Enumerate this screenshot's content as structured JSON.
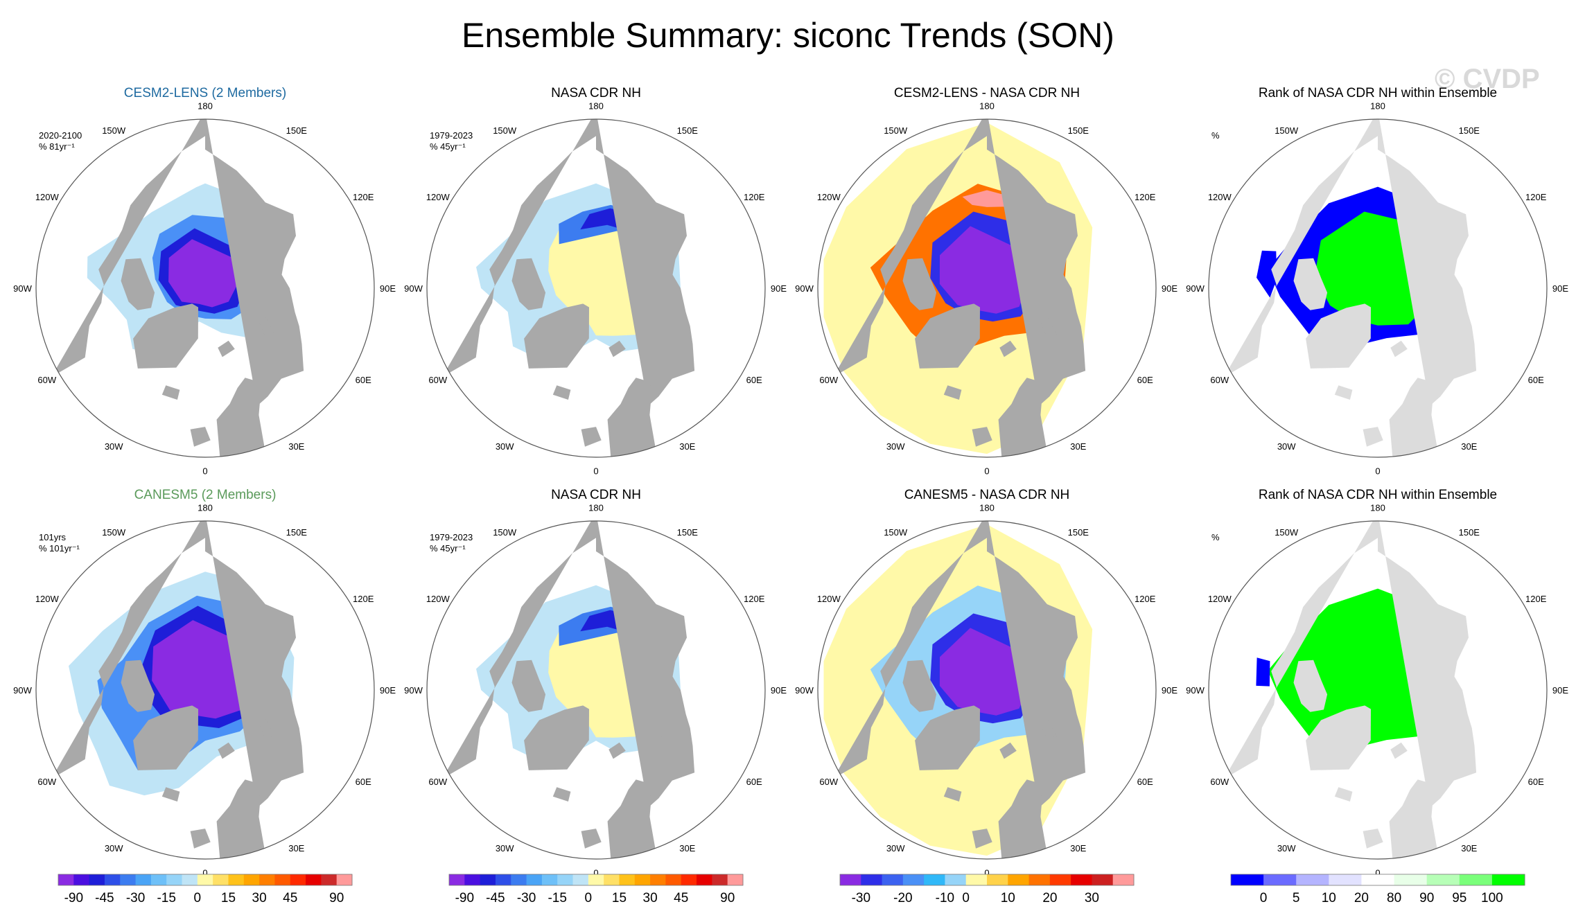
{
  "title": "Ensemble Summary: siconc Trends (SON)",
  "watermark": "© CVDP",
  "colors": {
    "land": "#a9a9a9",
    "rank_land": "#dcdcdc",
    "title_cesm": "#1e6aa0",
    "title_canesm": "#5a9a5a"
  },
  "longitude_labels": [
    "180",
    "150E",
    "120E",
    "90E",
    "60E",
    "30E",
    "0",
    "30W",
    "60W",
    "90W",
    "120W",
    "150W"
  ],
  "panels": [
    {
      "row": 0,
      "col": 0,
      "title": "CESM2-LENS (2 Members)",
      "title_color": "#1e6aa0",
      "note_lines": [
        "2020-2100",
        "% 81yr⁻¹"
      ],
      "type": "trend",
      "pattern": "cesm",
      "land_color": "#a9a9a9"
    },
    {
      "row": 0,
      "col": 1,
      "title": "NASA CDR NH",
      "title_color": "#000000",
      "note_lines": [
        "1979-2023",
        "% 45yr⁻¹"
      ],
      "type": "trend",
      "pattern": "obs",
      "land_color": "#a9a9a9"
    },
    {
      "row": 0,
      "col": 2,
      "title": "CESM2-LENS - NASA CDR NH",
      "title_color": "#000000",
      "note_lines": [],
      "type": "diff",
      "pattern": "diff-cesm",
      "land_color": "#a9a9a9"
    },
    {
      "row": 0,
      "col": 3,
      "title": "Rank of NASA CDR NH within Ensemble",
      "title_color": "#000000",
      "note_lines": [
        "%"
      ],
      "type": "rank",
      "pattern": "rank-cesm",
      "land_color": "#dcdcdc"
    },
    {
      "row": 1,
      "col": 0,
      "title": "CANESM5 (2 Members)",
      "title_color": "#5a9a5a",
      "note_lines": [
        "101yrs",
        "% 101yr⁻¹"
      ],
      "type": "trend",
      "pattern": "canesm",
      "land_color": "#a9a9a9"
    },
    {
      "row": 1,
      "col": 1,
      "title": "NASA CDR NH",
      "title_color": "#000000",
      "note_lines": [
        "1979-2023",
        "% 45yr⁻¹"
      ],
      "type": "trend",
      "pattern": "obs",
      "land_color": "#a9a9a9"
    },
    {
      "row": 1,
      "col": 2,
      "title": "CANESM5 - NASA CDR NH",
      "title_color": "#000000",
      "note_lines": [],
      "type": "diff",
      "pattern": "diff-canesm",
      "land_color": "#a9a9a9"
    },
    {
      "row": 1,
      "col": 3,
      "title": "Rank of NASA CDR NH within Ensemble",
      "title_color": "#000000",
      "note_lines": [
        "%"
      ],
      "type": "rank",
      "pattern": "rank-canesm",
      "land_color": "#dcdcdc"
    }
  ],
  "colorbars": [
    {
      "name": "trend-colorbar-1",
      "colors": [
        "#8a2be2",
        "#4b0fe0",
        "#1e1ed8",
        "#2e4fe8",
        "#3c7cf0",
        "#4aa4f6",
        "#6ec0f8",
        "#96d4f8",
        "#bfe4f6",
        "#fff9a8",
        "#ffe066",
        "#ffc21a",
        "#ffa500",
        "#ff7f00",
        "#ff5a00",
        "#ff2a00",
        "#e60000",
        "#cc2a2a",
        "#ff9a9a"
      ],
      "labels": [
        "-90",
        "-45",
        "-30",
        "-15",
        "0",
        "15",
        "30",
        "45",
        "90"
      ]
    },
    {
      "name": "trend-colorbar-2",
      "colors": [
        "#8a2be2",
        "#4b0fe0",
        "#1e1ed8",
        "#2e4fe8",
        "#3c7cf0",
        "#4aa4f6",
        "#6ec0f8",
        "#96d4f8",
        "#bfe4f6",
        "#fff9a8",
        "#ffe066",
        "#ffc21a",
        "#ffa500",
        "#ff7f00",
        "#ff5a00",
        "#ff2a00",
        "#e60000",
        "#cc2a2a",
        "#ff9a9a"
      ],
      "labels": [
        "-90",
        "-45",
        "-30",
        "-15",
        "0",
        "15",
        "30",
        "45",
        "90"
      ]
    },
    {
      "name": "diff-colorbar",
      "colors": [
        "#8a2be2",
        "#2e2ee8",
        "#3c62f0",
        "#4a90f6",
        "#30b8f8",
        "#96d4f8",
        "#fff9a8",
        "#ffd24a",
        "#ffa500",
        "#ff7200",
        "#ff3a00",
        "#e60000",
        "#cc2020",
        "#ff9a9a"
      ],
      "labels": [
        "-30",
        "-20",
        "-10",
        "0",
        "10",
        "20",
        "30"
      ]
    },
    {
      "name": "rank-colorbar",
      "colors": [
        "#0000ff",
        "#6b6bff",
        "#b4b4ff",
        "#e2e2ff",
        "#ffffff",
        "#e8ffe8",
        "#b7ffb7",
        "#7aff7a",
        "#00ff00"
      ],
      "labels": [
        "0",
        "5",
        "10",
        "20",
        "80",
        "90",
        "95",
        "100"
      ]
    }
  ]
}
